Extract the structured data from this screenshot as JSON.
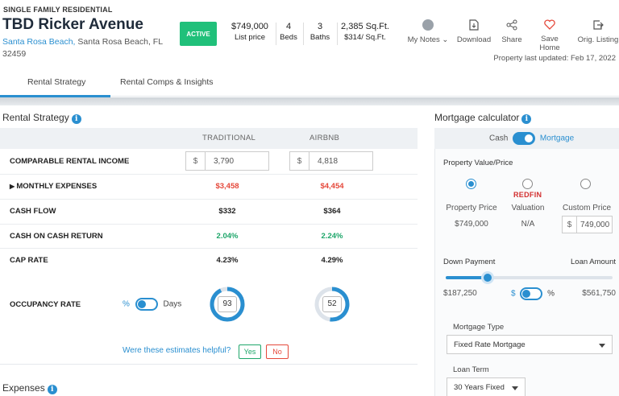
{
  "property": {
    "type": "SINGLE FAMILY RESIDENTIAL",
    "title": "TBD Ricker Avenue",
    "city": "Santa Rosa Beach,",
    "address_rest": " Santa Rosa Beach, FL 32459",
    "status": "ACTIVE"
  },
  "stats": {
    "price_value": "$749,000",
    "price_label": "List price",
    "beds_value": "4",
    "beds_label": "Beds",
    "baths_value": "3",
    "baths_label": "Baths",
    "sqft_value": "2,385 Sq.Ft.",
    "sqft_label": "$314/ Sq.Ft."
  },
  "actions": {
    "notes": "My Notes",
    "download": "Download",
    "share": "Share",
    "save": "Save Home",
    "orig": "Orig. Listing",
    "updated": "Property last updated: Feb 17, 2022"
  },
  "tabs": [
    "Rental Strategy",
    "Rental Comps & Insights"
  ],
  "rental": {
    "title": "Rental Strategy",
    "col_traditional": "TRADITIONAL",
    "col_airbnb": "AIRBNB",
    "rows": {
      "income_label": "COMPARABLE RENTAL INCOME",
      "income_currency": "$",
      "income_trad": "3,790",
      "income_air": "4,818",
      "expenses_label": "MONTHLY EXPENSES",
      "expenses_trad": "$3,458",
      "expenses_air": "$4,454",
      "cashflow_label": "CASH FLOW",
      "cashflow_trad": "$332",
      "cashflow_air": "$364",
      "coc_label": "CASH ON CASH RETURN",
      "coc_trad": "2.04%",
      "coc_air": "2.24%",
      "cap_label": "CAP RATE",
      "cap_trad": "4.23%",
      "cap_air": "4.29%",
      "occ_label": "OCCUPANCY RATE",
      "occ_unit_pct": "%",
      "occ_unit_days": "Days",
      "occ_trad": "93",
      "occ_air": "52"
    },
    "helpful": "Were these estimates helpful?",
    "yes": "Yes",
    "no": "No",
    "expenses_title": "Expenses"
  },
  "mortgage": {
    "title": "Mortgage calculator",
    "cash": "Cash",
    "mortgage": "Mortgage",
    "pv_title": "Property Value/Price",
    "opt1_label": "Property Price",
    "opt1_value": "$749,000",
    "redfin": "REDFIN",
    "opt2_label": "Valuation",
    "opt2_value": "N/A",
    "opt3_label": "Custom Price",
    "opt3_currency": "$",
    "opt3_value": "749,000",
    "down_label": "Down Payment",
    "loan_label": "Loan Amount",
    "down_value": "$187,250",
    "toggle_dollar": "$",
    "toggle_pct": "%",
    "loan_value": "$561,750",
    "down_fraction": 0.25,
    "type_label": "Mortgage Type",
    "type_value": "Fixed Rate Mortgage",
    "term_label": "Loan Term",
    "term_value": "30 Years Fixed"
  },
  "colors": {
    "accent": "#2a8fd0",
    "active": "#20c07a",
    "red": "#e5483a",
    "green": "#1ea66a"
  }
}
